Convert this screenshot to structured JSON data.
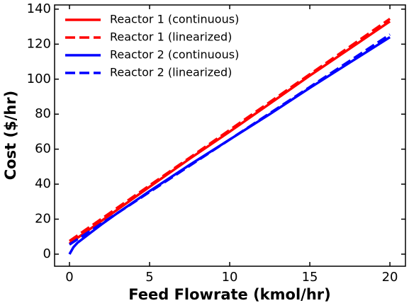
{
  "chart_data": {
    "type": "line",
    "xlabel": "Feed Flowrate (kmol/hr)",
    "ylabel": "Cost ($/hr)",
    "x": [
      0,
      0.25,
      0.5,
      1,
      2,
      3,
      5,
      7.5,
      10,
      12.5,
      15,
      17.5,
      20
    ],
    "series": [
      {
        "name": "Reactor 1 (continuous)",
        "color": "#ff0000",
        "linestyle": "solid",
        "values": [
          6,
          7.7,
          9.3,
          12.5,
          19,
          25.5,
          38.5,
          54.5,
          70,
          86,
          102,
          117.5,
          133
        ]
      },
      {
        "name": "Reactor 1 (linearized)",
        "color": "#ff0000",
        "linestyle": "dashed",
        "values": [
          7.5,
          9.1,
          10.7,
          13.9,
          20.2,
          26.6,
          39.3,
          55.1,
          71,
          86.9,
          102.8,
          118.6,
          134.5
        ]
      },
      {
        "name": "Reactor 2 (continuous)",
        "color": "#0000ff",
        "linestyle": "solid",
        "values": [
          0,
          4,
          6.5,
          10,
          17,
          23.5,
          36,
          51,
          65.5,
          80,
          95,
          109.5,
          124
        ]
      },
      {
        "name": "Reactor 2 (linearized)",
        "color": "#0000ff",
        "linestyle": "dashed",
        "values": [
          5.5,
          7,
          8.5,
          11.5,
          17.5,
          23.5,
          35.5,
          50.5,
          65.5,
          80.5,
          95.5,
          110.5,
          125.5
        ]
      }
    ],
    "xlim": [
      -0.93,
      20.97
    ],
    "ylim": [
      -6.9,
      142.4
    ],
    "xticks": [
      0,
      5,
      10,
      15,
      20
    ],
    "yticks": [
      0,
      20,
      40,
      60,
      80,
      100,
      120,
      140
    ],
    "legend": "upper left",
    "grid": false
  }
}
